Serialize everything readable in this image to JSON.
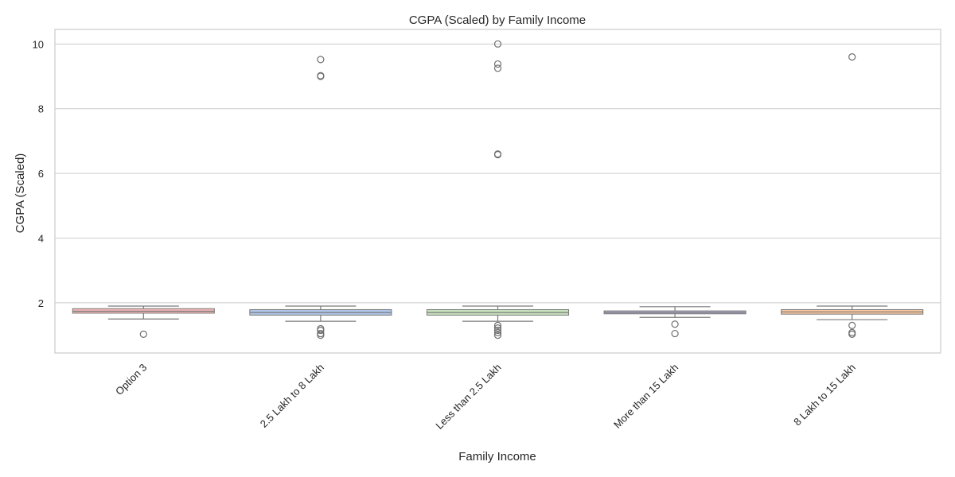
{
  "chart_data": {
    "type": "box",
    "title": "CGPA (Scaled) by Family Income",
    "xlabel": "Family Income",
    "ylabel": "CGPA (Scaled)",
    "ylim": [
      0.45,
      10.45
    ],
    "yticks": [
      2,
      4,
      6,
      8,
      10
    ],
    "grid": "horizontal",
    "categories": [
      "Option 3",
      "2.5 Lakh to 8 Lakh",
      "Less than 2.5 Lakh",
      "More than  15 Lakh",
      "8 Lakh to 15 Lakh"
    ],
    "boxes": [
      {
        "category": "Option 3",
        "whisker_low": 1.5,
        "q1": 1.68,
        "median": 1.74,
        "q3": 1.82,
        "whisker_high": 1.9,
        "color": "#f4b6b6",
        "outliers": [
          1.03
        ]
      },
      {
        "category": "2.5 Lakh to 8 Lakh",
        "whisker_low": 1.43,
        "q1": 1.62,
        "median": 1.7,
        "q3": 1.79,
        "whisker_high": 1.9,
        "color": "#aec6e8",
        "outliers": [
          1.2,
          1.15,
          1.05,
          1.0,
          9.0,
          9.02,
          9.52
        ]
      },
      {
        "category": "Less than 2.5 Lakh",
        "whisker_low": 1.43,
        "q1": 1.62,
        "median": 1.7,
        "q3": 1.79,
        "whisker_high": 1.9,
        "color": "#c7e3bd",
        "outliers": [
          1.3,
          1.22,
          1.15,
          1.08,
          1.0,
          6.6,
          6.58,
          9.25,
          9.38,
          10.0
        ]
      },
      {
        "category": "More than  15 Lakh",
        "whisker_low": 1.55,
        "q1": 1.66,
        "median": 1.7,
        "q3": 1.75,
        "whisker_high": 1.88,
        "color": "#b7b3d8",
        "outliers": [
          1.34,
          1.05
        ]
      },
      {
        "category": "8 Lakh to 15 Lakh",
        "whisker_low": 1.48,
        "q1": 1.65,
        "median": 1.72,
        "q3": 1.79,
        "whisker_high": 1.9,
        "color": "#f9c89e",
        "outliers": [
          1.3,
          1.08,
          1.03,
          9.6
        ]
      }
    ]
  }
}
